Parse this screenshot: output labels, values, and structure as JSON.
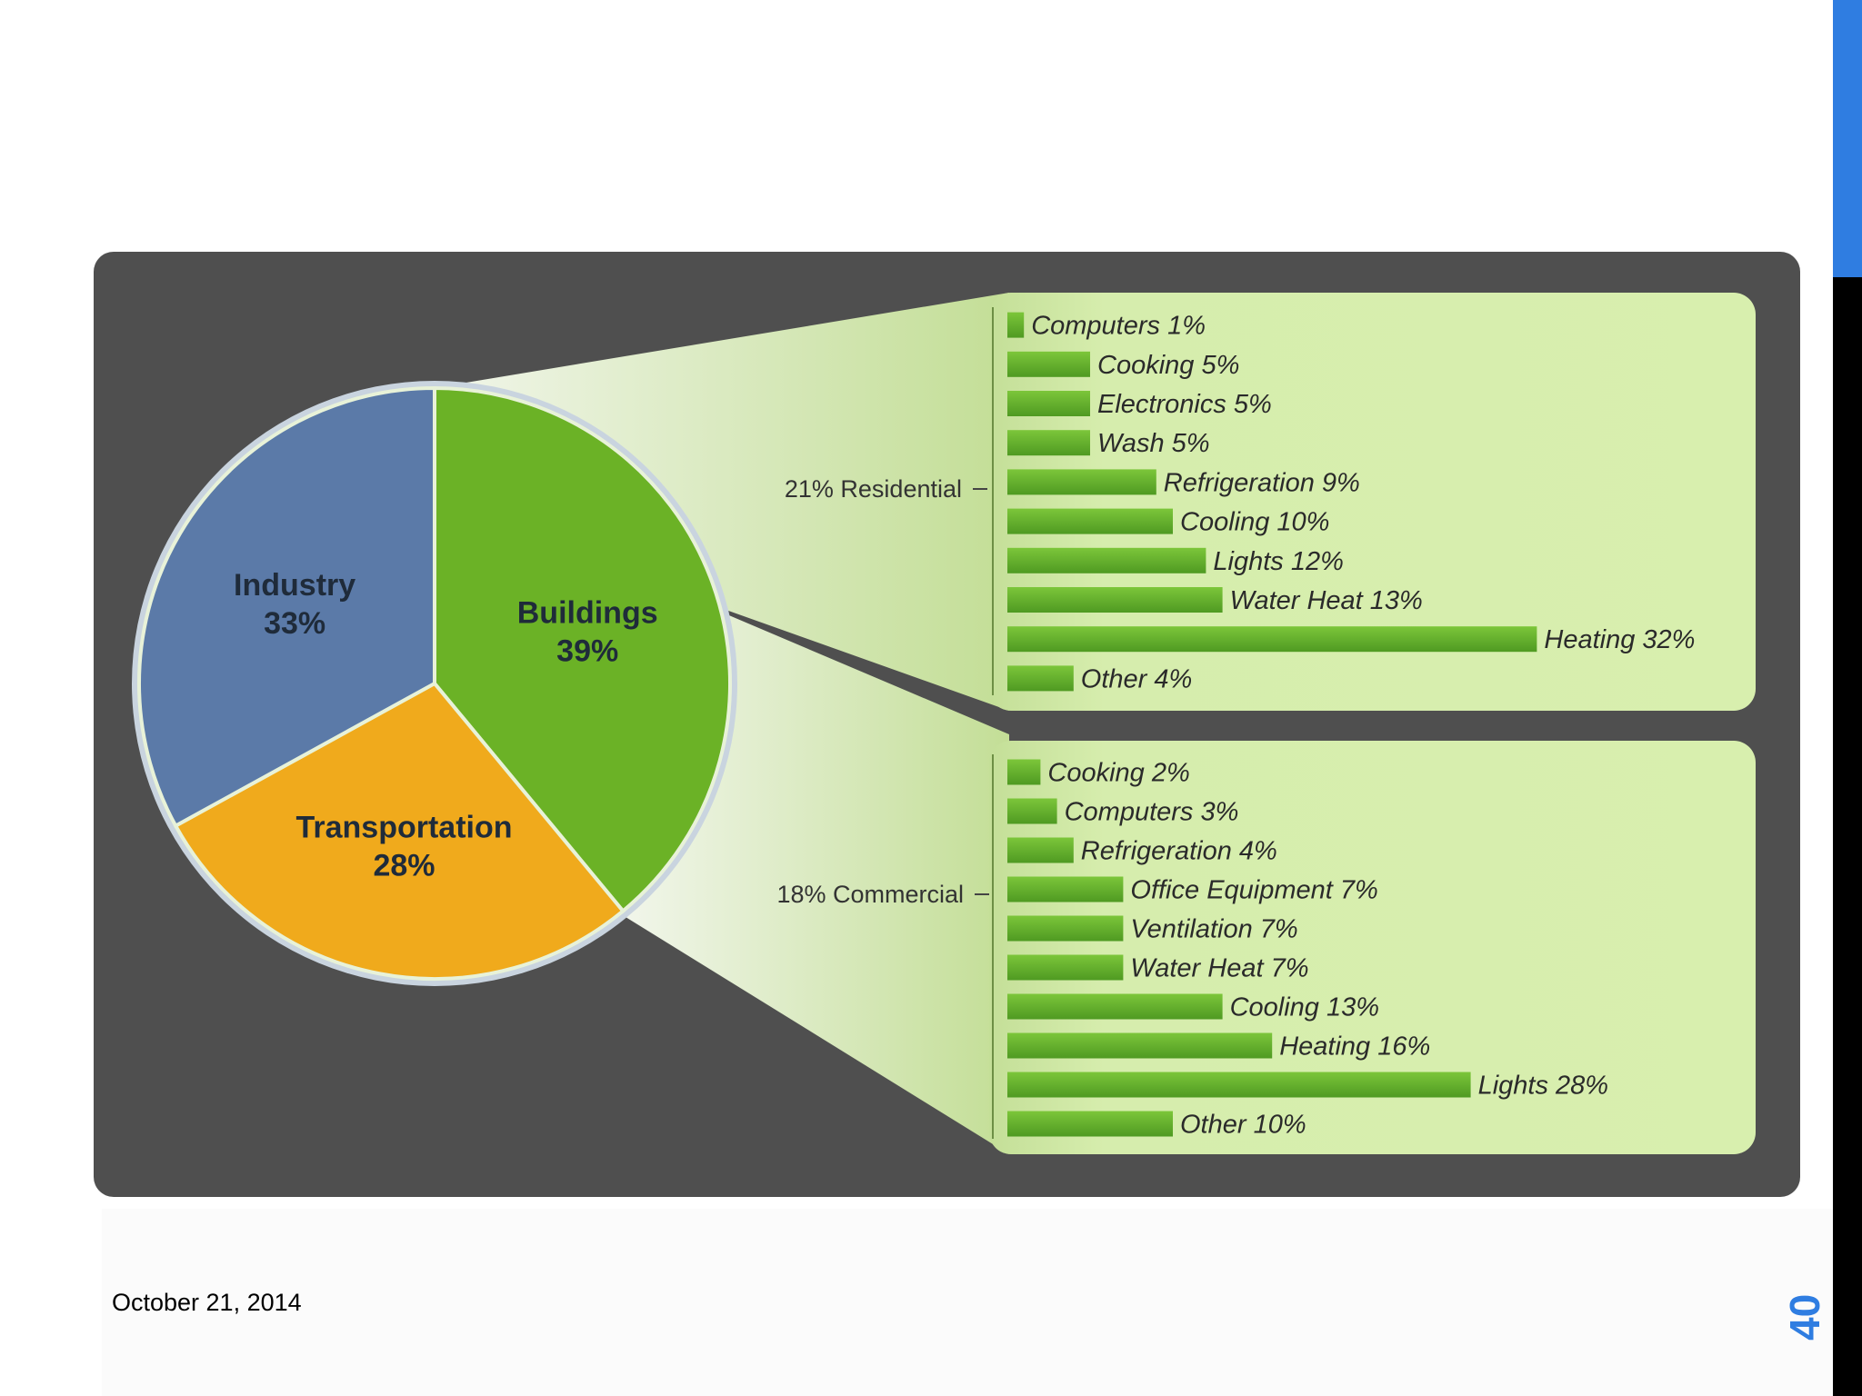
{
  "chart_data": [
    {
      "type": "pie",
      "slices": [
        {
          "label": "Industry",
          "value_text": "33%",
          "value": 33,
          "color": "#5b7aa8"
        },
        {
          "label": "Transportation",
          "value_text": "28%",
          "value": 28,
          "color": "#f0aa1c"
        },
        {
          "label": "Buildings",
          "value_text": "39%",
          "value": 39,
          "color": "#6bb226"
        }
      ]
    },
    {
      "type": "bar",
      "orientation": "horizontal",
      "group_label": "21% Residential",
      "categories": [
        "Computers",
        "Cooking",
        "Electronics",
        "Wash",
        "Refrigeration",
        "Cooling",
        "Lights",
        "Water Heat",
        "Heating",
        "Other"
      ],
      "values": [
        1,
        5,
        5,
        5,
        9,
        10,
        12,
        13,
        32,
        4
      ],
      "labels": [
        "Computers 1%",
        "Cooking 5%",
        "Electronics 5%",
        "Wash 5%",
        "Refrigeration 9%",
        "Cooling 10%",
        "Lights 12%",
        "Water Heat 13%",
        "Heating 32%",
        "Other 4%"
      ]
    },
    {
      "type": "bar",
      "orientation": "horizontal",
      "group_label": "18% Commercial",
      "categories": [
        "Cooking",
        "Computers",
        "Refrigeration",
        "Office Equipment",
        "Ventilation",
        "Water Heat",
        "Cooling",
        "Heating",
        "Lights",
        "Other"
      ],
      "values": [
        2,
        3,
        4,
        7,
        7,
        7,
        13,
        16,
        28,
        10
      ],
      "labels": [
        "Cooking 2%",
        "Computers 3%",
        "Refrigeration 4%",
        "Office Equipment 7%",
        "Ventilation 7%",
        "Water Heat 7%",
        "Cooling 13%",
        "Heating 16%",
        "Lights 28%",
        "Other 10%"
      ]
    }
  ],
  "footer": {
    "date": "October 21, 2014",
    "page_number": "40"
  },
  "colors": {
    "accent": "#2f7de1",
    "panel_background": "#4f4f4f",
    "bar_panel": "#d4ebaa",
    "bar_fill": "#5aa82a"
  }
}
